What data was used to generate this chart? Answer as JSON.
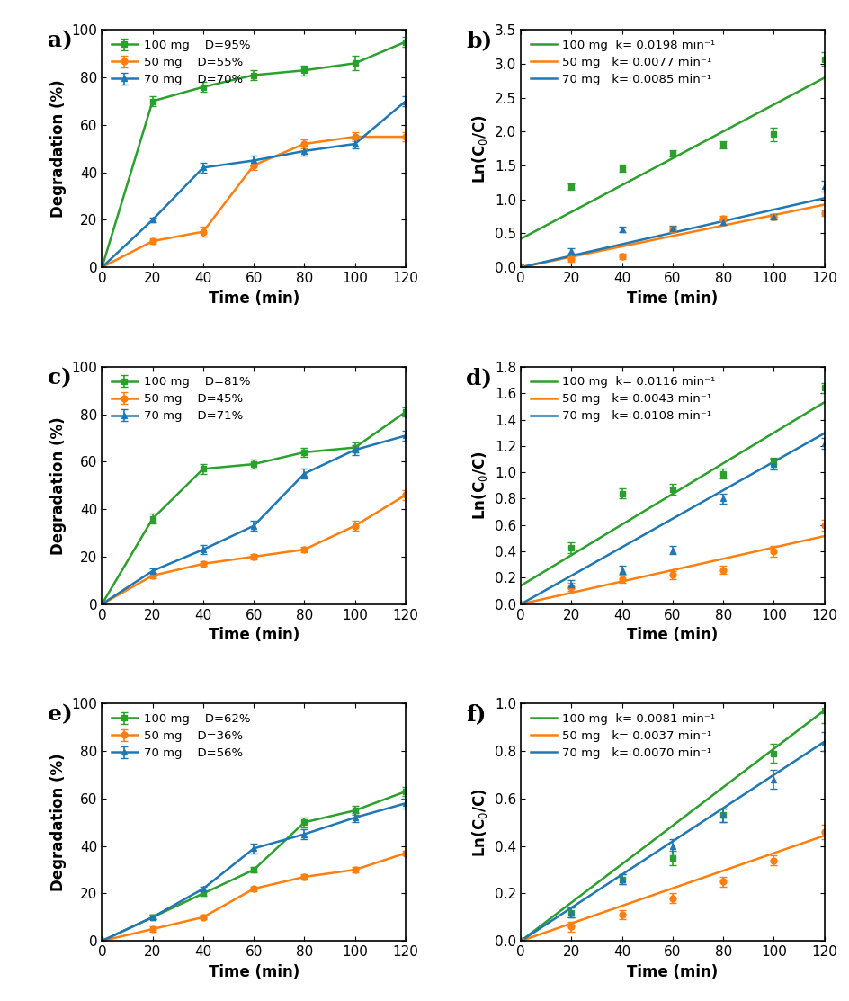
{
  "colors": {
    "green": "#2ca02c",
    "orange": "#ff7f0e",
    "blue": "#1f77b4"
  },
  "time": [
    0,
    20,
    40,
    60,
    80,
    100,
    120
  ],
  "panel_a": {
    "label": "a)",
    "ylabel": "Degradation (%)",
    "xlabel": "Time (min)",
    "ylim": [
      0,
      100
    ],
    "yticks": [
      0,
      20,
      40,
      60,
      80,
      100
    ],
    "legend": [
      "100 mg    D=95%",
      "50 mg    D=55%",
      "70 mg    D=70%"
    ],
    "green": [
      0,
      70,
      76,
      81,
      83,
      86,
      95
    ],
    "orange": [
      0,
      11,
      15,
      43,
      52,
      55,
      55
    ],
    "blue": [
      0,
      20,
      42,
      45,
      49,
      52,
      70
    ],
    "green_err": [
      0,
      2,
      2,
      2,
      2,
      3,
      2
    ],
    "orange_err": [
      0,
      1,
      2,
      2,
      2,
      2,
      2
    ],
    "blue_err": [
      0,
      1,
      2,
      2,
      2,
      2,
      2
    ]
  },
  "panel_b": {
    "label": "b)",
    "ylabel": "Ln(C$_0$/C)",
    "xlabel": "Time (min)",
    "ylim": [
      0,
      3.5
    ],
    "yticks": [
      0.0,
      0.5,
      1.0,
      1.5,
      2.0,
      2.5,
      3.0,
      3.5
    ],
    "legend": [
      "100 mg  k= 0.0198 min⁻¹",
      "50 mg   k= 0.0077 min⁻¹",
      "70 mg   k= 0.0085 min⁻¹"
    ],
    "green_pts": [
      0,
      1.19,
      1.46,
      1.68,
      1.81,
      1.96,
      3.07
    ],
    "orange_pts": [
      0,
      0.12,
      0.16,
      0.56,
      0.72,
      0.75,
      0.8
    ],
    "blue_pts": [
      0,
      0.24,
      0.56,
      0.57,
      0.66,
      0.74,
      1.2
    ],
    "green_err": [
      0,
      0.05,
      0.05,
      0.05,
      0.05,
      0.1,
      0.1
    ],
    "orange_err": [
      0,
      0.04,
      0.04,
      0.04,
      0.04,
      0.04,
      0.04
    ],
    "blue_err": [
      0,
      0.04,
      0.04,
      0.04,
      0.04,
      0.04,
      0.08
    ],
    "k_green": 0.0198,
    "k_orange": 0.0077,
    "k_blue": 0.0085,
    "b_green": 0.42,
    "b_orange": 0.0,
    "b_blue": 0.0
  },
  "panel_c": {
    "label": "c)",
    "ylabel": "Degradation (%)",
    "xlabel": "Time (min)",
    "ylim": [
      0,
      100
    ],
    "yticks": [
      0,
      20,
      40,
      60,
      80,
      100
    ],
    "legend": [
      "100 mg    D=81%",
      "50 mg    D=45%",
      "70 mg    D=71%"
    ],
    "green": [
      0,
      36,
      57,
      59,
      64,
      66,
      81
    ],
    "orange": [
      0,
      12,
      17,
      20,
      23,
      33,
      46
    ],
    "blue": [
      0,
      14,
      23,
      33,
      55,
      65,
      71
    ],
    "green_err": [
      0,
      2,
      2,
      2,
      2,
      2,
      2
    ],
    "orange_err": [
      0,
      1,
      1,
      1,
      1,
      2,
      2
    ],
    "blue_err": [
      0,
      1,
      2,
      2,
      2,
      2,
      2
    ]
  },
  "panel_d": {
    "label": "d)",
    "ylabel": "Ln(C$_0$/C)",
    "xlabel": "Time (min)",
    "ylim": [
      0,
      1.8
    ],
    "yticks": [
      0.0,
      0.2,
      0.4,
      0.6,
      0.8,
      1.0,
      1.2,
      1.4,
      1.6,
      1.8
    ],
    "legend": [
      "100 mg  k= 0.0116 min⁻¹",
      "50 mg   k= 0.0043 min⁻¹",
      "70 mg   k= 0.0108 min⁻¹"
    ],
    "green_pts": [
      0,
      0.43,
      0.84,
      0.87,
      0.99,
      1.07,
      1.64
    ],
    "orange_pts": [
      0,
      0.13,
      0.19,
      0.22,
      0.26,
      0.4,
      0.6
    ],
    "blue_pts": [
      0,
      0.15,
      0.26,
      0.41,
      0.8,
      1.06,
      1.22
    ],
    "green_err": [
      0,
      0.04,
      0.04,
      0.04,
      0.04,
      0.04,
      0.04
    ],
    "orange_err": [
      0,
      0.03,
      0.03,
      0.03,
      0.03,
      0.04,
      0.04
    ],
    "blue_err": [
      0,
      0.03,
      0.03,
      0.03,
      0.04,
      0.04,
      0.04
    ],
    "k_green": 0.0116,
    "k_orange": 0.0043,
    "k_blue": 0.0108,
    "b_green": 0.14,
    "b_orange": 0.0,
    "b_blue": 0.0
  },
  "panel_e": {
    "label": "e)",
    "ylabel": "Degradation (%)",
    "xlabel": "Time (min)",
    "ylim": [
      0,
      100
    ],
    "yticks": [
      0,
      20,
      40,
      60,
      80,
      100
    ],
    "legend": [
      "100 mg    D=62%",
      "50 mg    D=36%",
      "70 mg    D=56%"
    ],
    "green": [
      0,
      10,
      20,
      30,
      50,
      55,
      63
    ],
    "orange": [
      0,
      5,
      10,
      22,
      27,
      30,
      37
    ],
    "blue": [
      0,
      10,
      22,
      39,
      45,
      52,
      58
    ],
    "green_err": [
      0,
      1,
      1,
      1,
      2,
      2,
      2
    ],
    "orange_err": [
      0,
      1,
      1,
      1,
      1,
      1,
      1
    ],
    "blue_err": [
      0,
      1,
      1,
      2,
      2,
      2,
      2
    ]
  },
  "panel_f": {
    "label": "f)",
    "ylabel": "Ln(C$_0$/C)",
    "xlabel": "Time (min)",
    "ylim": [
      0,
      1.0
    ],
    "yticks": [
      0.0,
      0.2,
      0.4,
      0.6,
      0.8,
      1.0
    ],
    "legend": [
      "100 mg  k= 0.0081 min⁻¹",
      "50 mg   k= 0.0037 min⁻¹",
      "70 mg   k= 0.0070 min⁻¹"
    ],
    "green_pts": [
      0,
      0.12,
      0.26,
      0.35,
      0.53,
      0.79,
      0.97
    ],
    "orange_pts": [
      0,
      0.06,
      0.11,
      0.18,
      0.25,
      0.34,
      0.46
    ],
    "blue_pts": [
      0,
      0.12,
      0.26,
      0.4,
      0.53,
      0.68,
      0.84
    ],
    "green_err": [
      0,
      0.02,
      0.02,
      0.03,
      0.03,
      0.04,
      0.05
    ],
    "orange_err": [
      0,
      0.02,
      0.02,
      0.02,
      0.02,
      0.02,
      0.03
    ],
    "blue_err": [
      0,
      0.02,
      0.02,
      0.03,
      0.03,
      0.04,
      0.04
    ],
    "k_green": 0.0081,
    "k_orange": 0.0037,
    "k_blue": 0.007,
    "b_green": 0.0,
    "b_orange": 0.0,
    "b_blue": 0.0
  }
}
